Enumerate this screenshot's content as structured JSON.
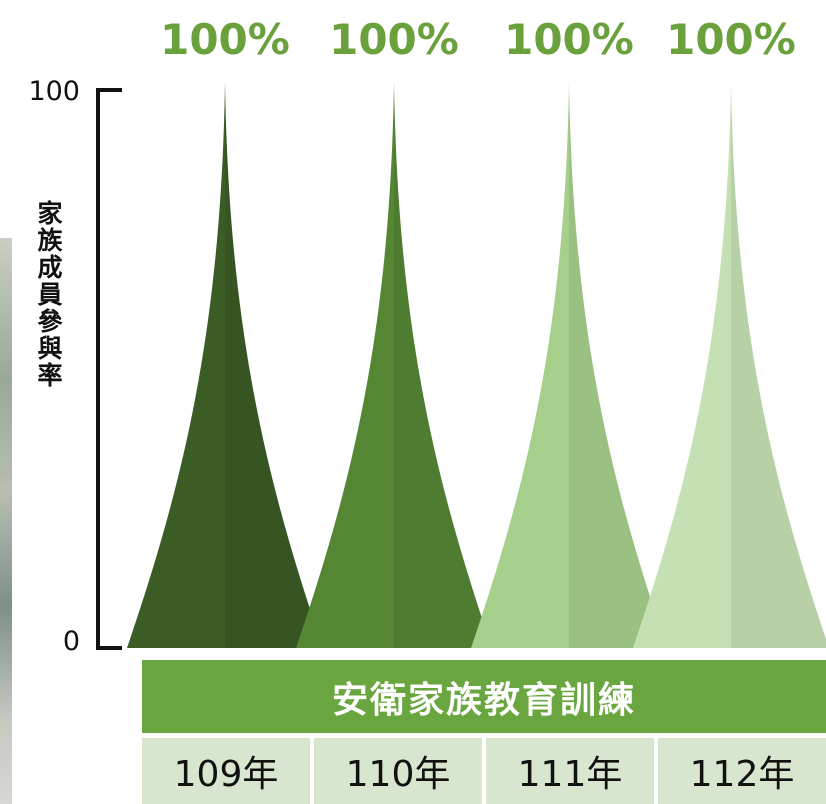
{
  "chart_data": {
    "type": "area",
    "title": "",
    "xlabel": "安衛家族教育訓練",
    "ylabel": "家族成員參與率",
    "ylim": [
      0,
      100
    ],
    "yticks": [
      0,
      100
    ],
    "categories": [
      "109年",
      "110年",
      "111年",
      "112年"
    ],
    "values": [
      100,
      100,
      100,
      100
    ],
    "data_labels": [
      "100%",
      "100%",
      "100%",
      "100%"
    ],
    "colors": [
      "#3c5c26",
      "#548634",
      "#a6cf8c",
      "#c5e0b2"
    ],
    "grid": false,
    "legend": "none"
  }
}
